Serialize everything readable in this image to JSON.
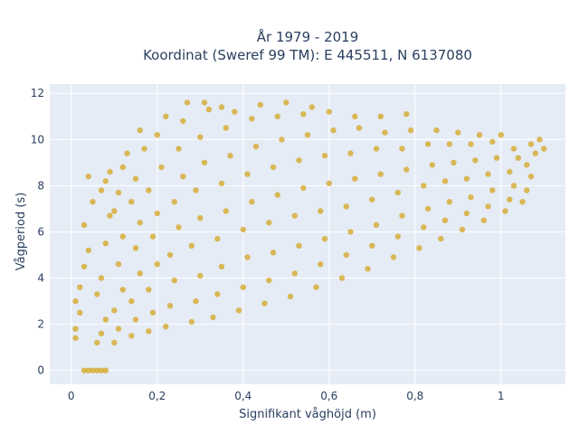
{
  "chart_data": {
    "type": "scatter",
    "title_line1": "År 1979 - 2019",
    "title_line2": "Koordinat (Sweref 99 TM): E 445511, N 6137080",
    "xlabel": "Signifikant våghöjd (m)",
    "ylabel": "Vågperiod (s)",
    "xlim": [
      -0.05,
      1.15
    ],
    "ylim": [
      -0.6,
      12.4
    ],
    "x_ticks": [
      0,
      0.2,
      0.4,
      0.6,
      0.8,
      1.0
    ],
    "x_tick_labels": [
      "0",
      "0,2",
      "0,4",
      "0,6",
      "0,8",
      "1"
    ],
    "y_ticks": [
      0,
      2,
      4,
      6,
      8,
      10,
      12
    ],
    "y_tick_labels": [
      "0",
      "2",
      "4",
      "6",
      "8",
      "10",
      "12"
    ],
    "grid": true,
    "legend": "none",
    "marker_color": "#d4a520",
    "background_color": "#e5ecf6",
    "grid_color": "#ffffff",
    "text_color": "#2a3f5f",
    "points": [
      [
        0.03,
        0.0
      ],
      [
        0.04,
        0.0
      ],
      [
        0.05,
        0.0
      ],
      [
        0.06,
        0.0
      ],
      [
        0.07,
        0.0
      ],
      [
        0.08,
        0.0
      ],
      [
        0.01,
        1.4
      ],
      [
        0.01,
        1.8
      ],
      [
        0.02,
        2.5
      ],
      [
        0.01,
        3.0
      ],
      [
        0.02,
        3.6
      ],
      [
        0.03,
        4.5
      ],
      [
        0.04,
        5.2
      ],
      [
        0.03,
        6.3
      ],
      [
        0.05,
        7.3
      ],
      [
        0.04,
        8.4
      ],
      [
        0.06,
        1.2
      ],
      [
        0.07,
        1.6
      ],
      [
        0.08,
        2.2
      ],
      [
        0.06,
        3.3
      ],
      [
        0.07,
        4.0
      ],
      [
        0.08,
        5.5
      ],
      [
        0.09,
        6.7
      ],
      [
        0.07,
        7.8
      ],
      [
        0.09,
        8.6
      ],
      [
        0.08,
        8.2
      ],
      [
        0.1,
        1.2
      ],
      [
        0.11,
        1.8
      ],
      [
        0.1,
        2.6
      ],
      [
        0.12,
        3.5
      ],
      [
        0.11,
        4.6
      ],
      [
        0.12,
        5.8
      ],
      [
        0.1,
        6.9
      ],
      [
        0.11,
        7.7
      ],
      [
        0.12,
        8.8
      ],
      [
        0.13,
        9.4
      ],
      [
        0.14,
        1.5
      ],
      [
        0.15,
        2.2
      ],
      [
        0.14,
        3.0
      ],
      [
        0.16,
        4.2
      ],
      [
        0.15,
        5.3
      ],
      [
        0.16,
        6.4
      ],
      [
        0.14,
        7.3
      ],
      [
        0.15,
        8.3
      ],
      [
        0.17,
        9.6
      ],
      [
        0.16,
        10.4
      ],
      [
        0.18,
        1.7
      ],
      [
        0.19,
        2.5
      ],
      [
        0.18,
        3.5
      ],
      [
        0.2,
        4.6
      ],
      [
        0.19,
        5.8
      ],
      [
        0.2,
        6.8
      ],
      [
        0.18,
        7.8
      ],
      [
        0.21,
        8.8
      ],
      [
        0.2,
        10.2
      ],
      [
        0.22,
        11.0
      ],
      [
        0.22,
        1.9
      ],
      [
        0.23,
        2.8
      ],
      [
        0.24,
        3.9
      ],
      [
        0.23,
        5.0
      ],
      [
        0.25,
        6.2
      ],
      [
        0.24,
        7.3
      ],
      [
        0.26,
        8.4
      ],
      [
        0.25,
        9.6
      ],
      [
        0.26,
        10.8
      ],
      [
        0.27,
        11.6
      ],
      [
        0.28,
        2.1
      ],
      [
        0.29,
        3.0
      ],
      [
        0.3,
        4.1
      ],
      [
        0.28,
        5.4
      ],
      [
        0.3,
        6.6
      ],
      [
        0.29,
        7.8
      ],
      [
        0.31,
        9.0
      ],
      [
        0.3,
        10.1
      ],
      [
        0.32,
        11.3
      ],
      [
        0.31,
        11.6
      ],
      [
        0.33,
        2.3
      ],
      [
        0.34,
        3.3
      ],
      [
        0.35,
        4.5
      ],
      [
        0.34,
        5.7
      ],
      [
        0.36,
        6.9
      ],
      [
        0.35,
        8.1
      ],
      [
        0.37,
        9.3
      ],
      [
        0.36,
        10.5
      ],
      [
        0.38,
        11.2
      ],
      [
        0.35,
        11.4
      ],
      [
        0.39,
        2.6
      ],
      [
        0.4,
        3.6
      ],
      [
        0.41,
        4.9
      ],
      [
        0.4,
        6.1
      ],
      [
        0.42,
        7.3
      ],
      [
        0.41,
        8.5
      ],
      [
        0.43,
        9.7
      ],
      [
        0.42,
        10.9
      ],
      [
        0.44,
        11.5
      ],
      [
        0.45,
        2.9
      ],
      [
        0.46,
        3.9
      ],
      [
        0.47,
        5.1
      ],
      [
        0.46,
        6.4
      ],
      [
        0.48,
        7.6
      ],
      [
        0.47,
        8.8
      ],
      [
        0.49,
        10.0
      ],
      [
        0.48,
        11.0
      ],
      [
        0.5,
        11.6
      ],
      [
        0.51,
        3.2
      ],
      [
        0.52,
        4.2
      ],
      [
        0.53,
        5.4
      ],
      [
        0.52,
        6.7
      ],
      [
        0.54,
        7.9
      ],
      [
        0.53,
        9.1
      ],
      [
        0.55,
        10.2
      ],
      [
        0.54,
        11.1
      ],
      [
        0.56,
        11.4
      ],
      [
        0.57,
        3.6
      ],
      [
        0.58,
        4.6
      ],
      [
        0.59,
        5.7
      ],
      [
        0.58,
        6.9
      ],
      [
        0.6,
        8.1
      ],
      [
        0.59,
        9.3
      ],
      [
        0.61,
        10.4
      ],
      [
        0.6,
        11.2
      ],
      [
        0.63,
        4.0
      ],
      [
        0.64,
        5.0
      ],
      [
        0.65,
        6.0
      ],
      [
        0.64,
        7.1
      ],
      [
        0.66,
        8.3
      ],
      [
        0.65,
        9.4
      ],
      [
        0.67,
        10.5
      ],
      [
        0.66,
        11.0
      ],
      [
        0.69,
        4.4
      ],
      [
        0.7,
        5.4
      ],
      [
        0.71,
        6.3
      ],
      [
        0.7,
        7.4
      ],
      [
        0.72,
        8.5
      ],
      [
        0.71,
        9.6
      ],
      [
        0.73,
        10.3
      ],
      [
        0.72,
        11.0
      ],
      [
        0.75,
        4.9
      ],
      [
        0.76,
        5.8
      ],
      [
        0.77,
        6.7
      ],
      [
        0.76,
        7.7
      ],
      [
        0.78,
        8.7
      ],
      [
        0.77,
        9.6
      ],
      [
        0.79,
        10.4
      ],
      [
        0.78,
        11.1
      ],
      [
        0.81,
        5.3
      ],
      [
        0.82,
        6.2
      ],
      [
        0.83,
        7.0
      ],
      [
        0.82,
        8.0
      ],
      [
        0.84,
        8.9
      ],
      [
        0.83,
        9.8
      ],
      [
        0.85,
        10.4
      ],
      [
        0.86,
        5.7
      ],
      [
        0.87,
        6.5
      ],
      [
        0.88,
        7.3
      ],
      [
        0.87,
        8.2
      ],
      [
        0.89,
        9.0
      ],
      [
        0.88,
        9.8
      ],
      [
        0.9,
        10.3
      ],
      [
        0.91,
        6.1
      ],
      [
        0.92,
        6.8
      ],
      [
        0.93,
        7.5
      ],
      [
        0.92,
        8.3
      ],
      [
        0.94,
        9.1
      ],
      [
        0.93,
        9.8
      ],
      [
        0.95,
        10.2
      ],
      [
        0.96,
        6.5
      ],
      [
        0.97,
        7.1
      ],
      [
        0.98,
        7.8
      ],
      [
        0.97,
        8.5
      ],
      [
        0.99,
        9.2
      ],
      [
        0.98,
        9.9
      ],
      [
        1.0,
        10.2
      ],
      [
        1.01,
        6.9
      ],
      [
        1.02,
        7.4
      ],
      [
        1.03,
        8.0
      ],
      [
        1.02,
        8.6
      ],
      [
        1.04,
        9.2
      ],
      [
        1.03,
        9.6
      ],
      [
        1.05,
        7.3
      ],
      [
        1.06,
        7.8
      ],
      [
        1.07,
        8.4
      ],
      [
        1.06,
        8.9
      ],
      [
        1.08,
        9.4
      ],
      [
        1.07,
        9.8
      ],
      [
        1.09,
        10.0
      ],
      [
        1.1,
        9.6
      ]
    ]
  }
}
